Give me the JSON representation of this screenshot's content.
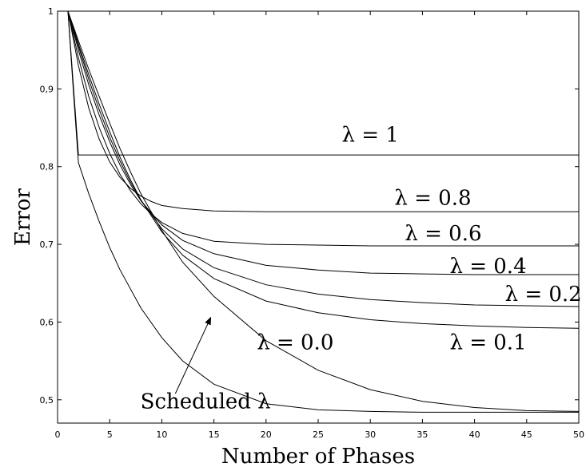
{
  "chart_data": {
    "type": "line",
    "title": "",
    "xlabel": "Number of Phases",
    "ylabel": "Error",
    "xlim": [
      0,
      50
    ],
    "ylim": [
      0.47,
      1.0
    ],
    "xticks": [
      0,
      5,
      10,
      15,
      20,
      25,
      30,
      35,
      40,
      45,
      50
    ],
    "yticks": [
      0.5,
      0.6,
      0.7,
      0.8,
      0.9,
      1.0
    ],
    "ytick_labels": [
      "0,5",
      "0,6",
      "0,7",
      "0,8",
      "0,9",
      "1"
    ],
    "grid": false,
    "legend": "none",
    "line_color": "#000000",
    "series": [
      {
        "label": "λ = 1",
        "x": [
          1,
          2,
          50
        ],
        "y": [
          1.0,
          0.815,
          0.815
        ]
      },
      {
        "label": "λ = 0.8",
        "x": [
          1,
          2,
          3,
          4,
          5,
          6,
          7,
          8,
          9,
          10,
          12,
          15,
          20,
          25,
          30,
          40,
          50
        ],
        "y": [
          1.0,
          0.93,
          0.875,
          0.835,
          0.806,
          0.786,
          0.772,
          0.762,
          0.755,
          0.75,
          0.746,
          0.743,
          0.742,
          0.742,
          0.742,
          0.742,
          0.742
        ]
      },
      {
        "label": "λ = 0.6",
        "x": [
          1,
          2,
          3,
          4,
          5,
          6,
          7,
          8,
          9,
          10,
          12,
          15,
          20,
          25,
          30,
          35,
          40,
          45,
          50
        ],
        "y": [
          1.0,
          0.94,
          0.89,
          0.85,
          0.817,
          0.79,
          0.769,
          0.752,
          0.739,
          0.728,
          0.714,
          0.704,
          0.7,
          0.699,
          0.698,
          0.698,
          0.698,
          0.698,
          0.698
        ]
      },
      {
        "label": "λ = 0.4",
        "x": [
          1,
          2,
          3,
          4,
          5,
          6,
          7,
          8,
          10,
          12,
          15,
          20,
          25,
          30,
          35,
          40,
          45,
          50
        ],
        "y": [
          1.0,
          0.95,
          0.905,
          0.866,
          0.832,
          0.802,
          0.777,
          0.756,
          0.725,
          0.705,
          0.688,
          0.673,
          0.667,
          0.663,
          0.662,
          0.661,
          0.661,
          0.661
        ]
      },
      {
        "label": "λ = 0.2",
        "x": [
          1,
          2,
          3,
          4,
          5,
          6,
          7,
          8,
          10,
          12,
          15,
          20,
          25,
          30,
          35,
          40,
          45,
          50
        ],
        "y": [
          1.0,
          0.955,
          0.912,
          0.873,
          0.838,
          0.807,
          0.78,
          0.757,
          0.72,
          0.694,
          0.67,
          0.648,
          0.636,
          0.629,
          0.625,
          0.622,
          0.621,
          0.62
        ]
      },
      {
        "label": "λ = 0.1",
        "x": [
          1,
          2,
          3,
          4,
          5,
          6,
          7,
          8,
          10,
          12,
          15,
          20,
          25,
          30,
          35,
          40,
          45,
          50
        ],
        "y": [
          1.0,
          0.958,
          0.918,
          0.88,
          0.845,
          0.812,
          0.783,
          0.757,
          0.716,
          0.686,
          0.656,
          0.627,
          0.612,
          0.603,
          0.598,
          0.595,
          0.593,
          0.592
        ]
      },
      {
        "label": "λ = 0.0",
        "x": [
          1,
          2,
          3,
          4,
          5,
          6,
          7,
          8,
          10,
          12,
          15,
          20,
          25,
          30,
          35,
          40,
          45,
          50
        ],
        "y": [
          1.0,
          0.962,
          0.925,
          0.89,
          0.856,
          0.823,
          0.793,
          0.765,
          0.718,
          0.677,
          0.633,
          0.576,
          0.538,
          0.513,
          0.498,
          0.49,
          0.486,
          0.485
        ]
      },
      {
        "label": "Scheduled λ",
        "x": [
          1,
          1.5,
          2,
          3,
          4,
          5,
          6,
          8,
          10,
          12,
          15,
          20,
          25,
          30,
          35,
          40,
          45,
          50
        ],
        "y": [
          1.0,
          0.9,
          0.805,
          0.765,
          0.729,
          0.696,
          0.667,
          0.618,
          0.58,
          0.55,
          0.52,
          0.495,
          0.487,
          0.485,
          0.484,
          0.484,
          0.484,
          0.484
        ]
      }
    ],
    "annotations": [
      {
        "text": "λ = 1",
        "x": 30,
        "y": 0.832
      },
      {
        "text": "λ = 0.8",
        "x": 36,
        "y": 0.751
      },
      {
        "text": "λ = 0.6",
        "x": 37,
        "y": 0.705
      },
      {
        "text": "λ = 0.4",
        "x": 41.3,
        "y": 0.663
      },
      {
        "text": "λ = 0.2",
        "x": 46.6,
        "y": 0.627
      },
      {
        "text": "λ = 0.1",
        "x": 41.3,
        "y": 0.565
      },
      {
        "text": "λ = 0.0",
        "x": 22.8,
        "y": 0.565
      },
      {
        "text": "Scheduled λ",
        "x": 14.2,
        "y": 0.489
      }
    ],
    "arrow": {
      "from": [
        11.3,
        0.508
      ],
      "to": [
        14.7,
        0.606
      ]
    }
  }
}
